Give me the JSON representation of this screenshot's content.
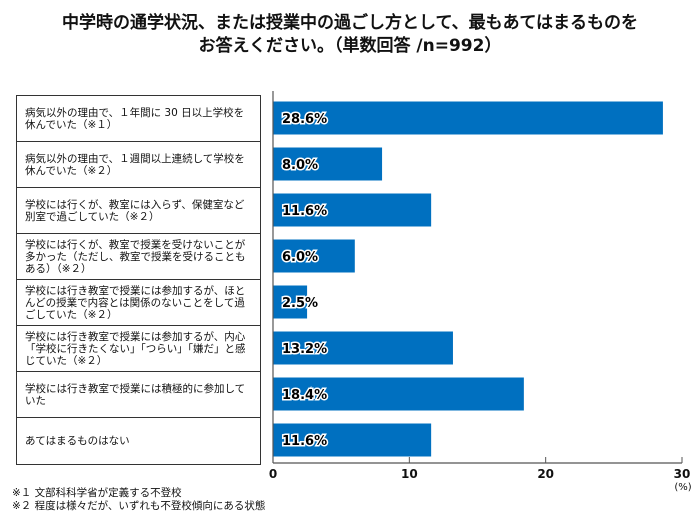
{
  "chart_data": {
    "type": "bar",
    "orientation": "horizontal",
    "title": "中学時の通学状況、または授業中の過ごし方として、最もあてはまるものをお答えください。（単数回答 /n=992）",
    "title_lines": [
      "中学時の通学状況、または授業中の過ごし方として、最もあてはまるものを",
      "お答えください。（単数回答 /n=992）"
    ],
    "categories": [
      "病気以外の理由で、１年間に 30 日以上学校を休んでいた（※１）",
      "病気以外の理由で、１週間以上連続して学校を休んでいた（※２）",
      "学校には行くが、教室には入らず、保健室など別室で過ごしていた（※２）",
      "学校には行くが、教室で授業を受けないことが多かった（ただし、教室で授業を受けることもある）（※２）",
      "学校には行き教室で授業には参加するが、ほとんどの授業で内容とは関係のないことをして過ごしていた（※２）",
      "学校には行き教室で授業には参加するが、内心「学校に行きたくない」「つらい」「嫌だ」と感じていた（※２）",
      "学校には行き教室で授業には積極的に参加していた",
      "あてはまるものはない"
    ],
    "values": [
      28.6,
      8.0,
      11.6,
      6.0,
      2.5,
      13.2,
      18.4,
      11.6
    ],
    "value_labels": [
      "28.6%",
      "8.0%",
      "11.6%",
      "6.0%",
      "2.5%",
      "13.2%",
      "18.4%",
      "11.6%"
    ],
    "xlim": [
      0,
      30
    ],
    "xticks": [
      "0",
      "10",
      "20",
      "30"
    ],
    "xunit": "(%)",
    "bar_color": "#0070c0",
    "grid": false
  },
  "footnotes": [
    "※１ 文部科科学省が定義する不登校",
    "※２ 程度は様々だが、いずれも不登校傾向にある状態"
  ]
}
